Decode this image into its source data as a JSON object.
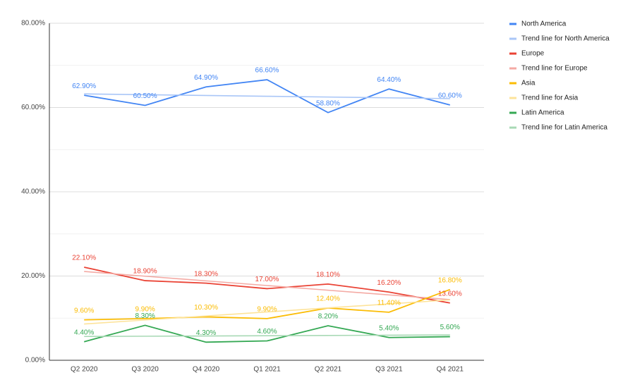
{
  "chart_data": {
    "type": "line",
    "categories": [
      "Q2 2020",
      "Q3 2020",
      "Q4 2020",
      "Q1 2021",
      "Q2 2021",
      "Q3 2021",
      "Q4 2021"
    ],
    "ylim": [
      0,
      80
    ],
    "yticks": [
      {
        "value": 0,
        "label": "0.00%"
      },
      {
        "value": 20,
        "label": "20.00%"
      },
      {
        "value": 40,
        "label": "40.00%"
      },
      {
        "value": 60,
        "label": "60.00%"
      },
      {
        "value": 80,
        "label": "80.00%"
      }
    ],
    "minor_yticks": [
      10,
      30,
      50,
      70
    ],
    "grid": true,
    "legend": "right",
    "series": [
      {
        "name": "North America",
        "color": "#4285f4",
        "values": [
          62.9,
          60.5,
          64.9,
          66.6,
          58.8,
          64.4,
          60.6
        ],
        "value_labels": [
          "62.90%",
          "60.50%",
          "64.90%",
          "66.60%",
          "58.80%",
          "64.40%",
          "60.60%"
        ]
      },
      {
        "name": "Trend line for North America",
        "color": "#a9c6f7",
        "values": [
          63.23,
          63.04,
          62.86,
          62.67,
          62.49,
          62.3,
          62.11
        ]
      },
      {
        "name": "Europe",
        "color": "#ea4335",
        "values": [
          22.1,
          18.9,
          18.3,
          17.0,
          18.1,
          16.2,
          13.6
        ],
        "value_labels": [
          "22.10%",
          "18.90%",
          "18.30%",
          "17.00%",
          "18.10%",
          "16.20%",
          "13.60%"
        ]
      },
      {
        "name": "Trend line for Europe",
        "color": "#f4aaa4",
        "values": [
          21.08,
          19.96,
          18.85,
          17.74,
          16.63,
          15.52,
          14.41
        ]
      },
      {
        "name": "Asia",
        "color": "#fbbc04",
        "values": [
          9.6,
          9.9,
          10.3,
          9.9,
          12.4,
          11.4,
          16.8
        ],
        "value_labels": [
          "9.60%",
          "9.90%",
          "10.30%",
          "9.90%",
          "12.40%",
          "11.40%",
          "16.80%"
        ]
      },
      {
        "name": "Trend line for Asia",
        "color": "#fde39a",
        "values": [
          8.61,
          9.56,
          10.52,
          11.47,
          12.43,
          13.38,
          14.33
        ]
      },
      {
        "name": "Latin America",
        "color": "#34a853",
        "values": [
          4.4,
          8.3,
          4.3,
          4.6,
          8.2,
          5.4,
          5.6
        ],
        "value_labels": [
          "4.40%",
          "8.30%",
          "4.30%",
          "4.60%",
          "8.20%",
          "5.40%",
          "5.60%"
        ]
      },
      {
        "name": "Trend line for Latin America",
        "color": "#a8d9b5",
        "values": [
          5.65,
          5.71,
          5.77,
          5.83,
          5.89,
          5.95,
          6.01
        ]
      }
    ]
  }
}
